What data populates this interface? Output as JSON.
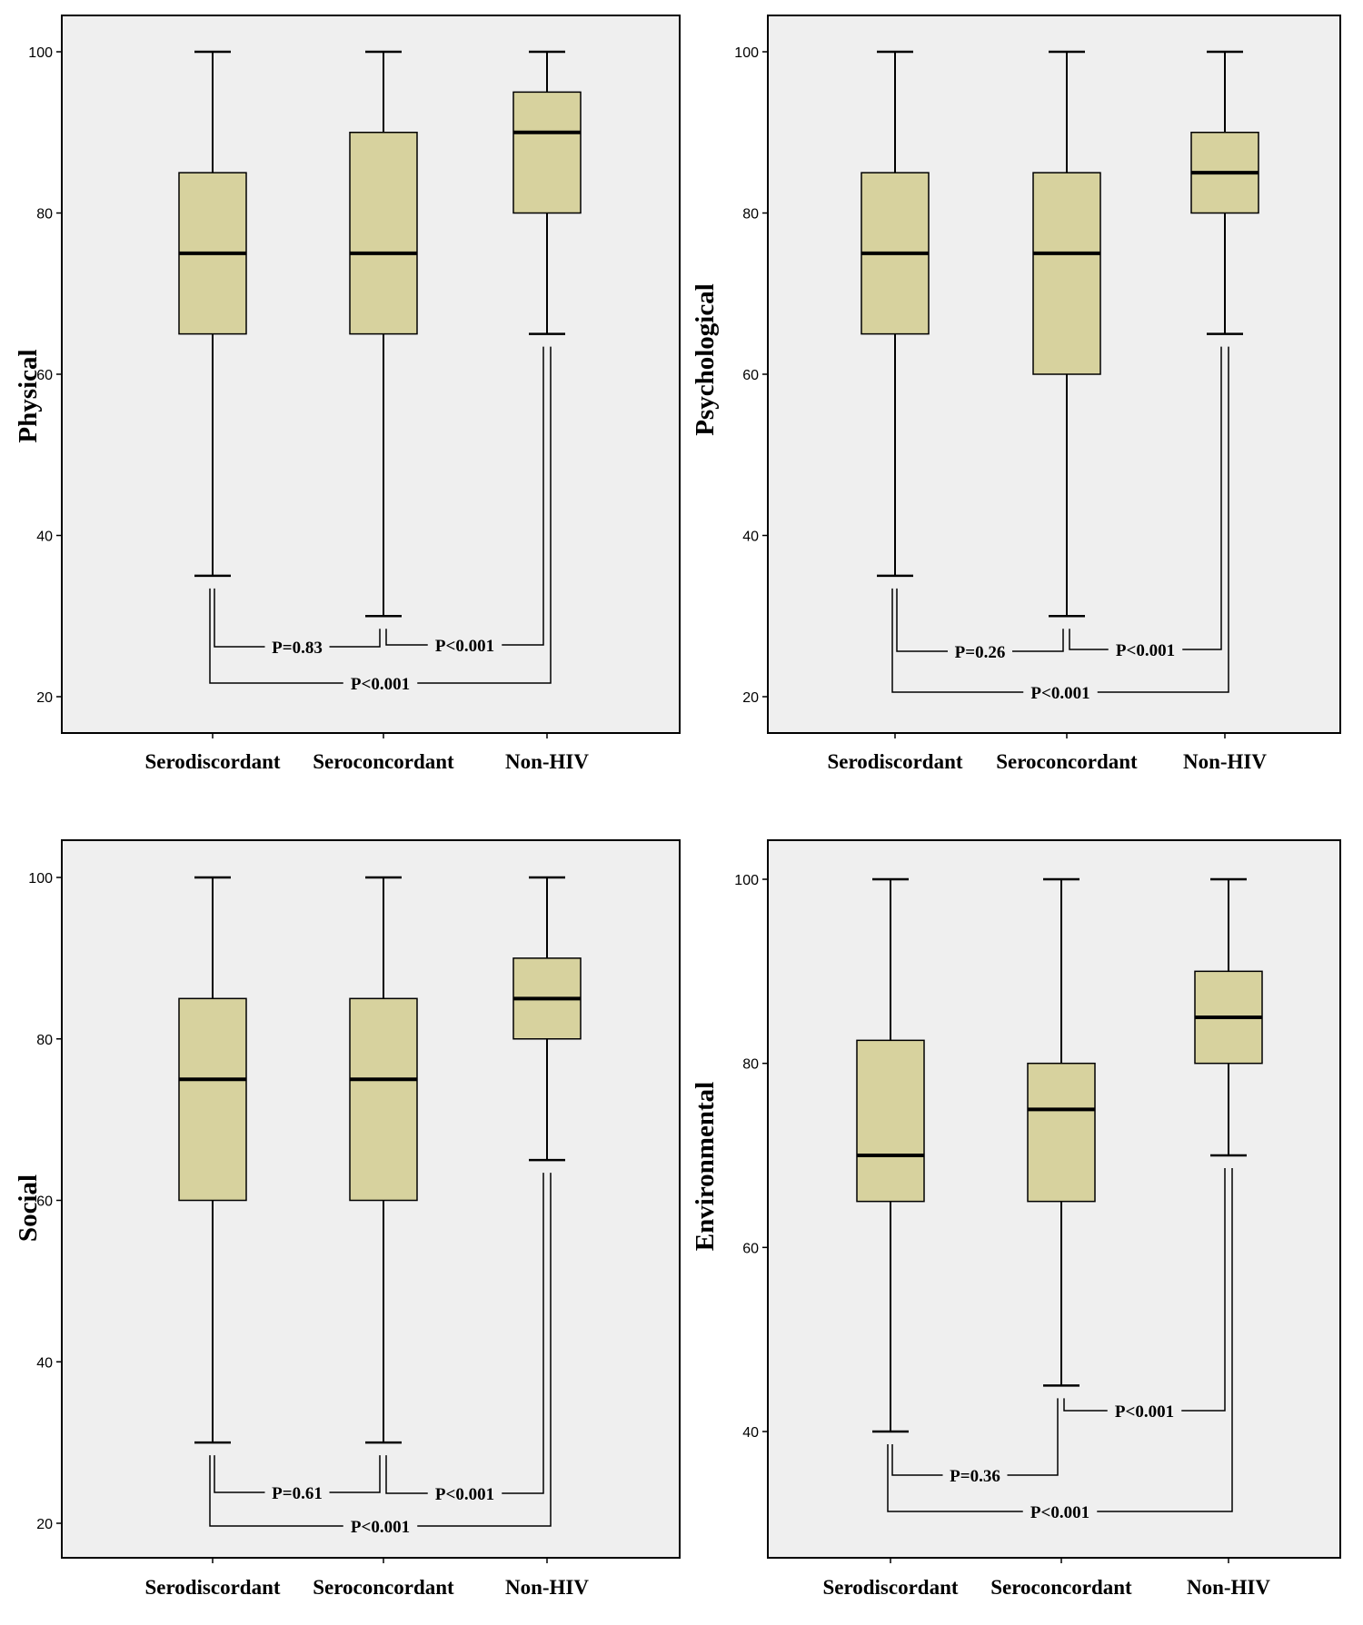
{
  "chart_data": [
    {
      "type": "box",
      "ylabel": "Physical",
      "categories": [
        "Serodiscordant",
        "Seroconcordant",
        "Non-HIV"
      ],
      "ylim": [
        15,
        104
      ],
      "yticks": [
        20,
        40,
        60,
        80,
        100
      ],
      "boxes": [
        {
          "min": 35,
          "q1": 65,
          "median": 75,
          "q3": 85,
          "max": 100
        },
        {
          "min": 30,
          "q1": 65,
          "median": 75,
          "q3": 90,
          "max": 100
        },
        {
          "min": 65,
          "q1": 80,
          "median": 90,
          "q3": 95,
          "max": 100
        }
      ],
      "comparisons": [
        {
          "from": 0,
          "to": 1,
          "label": "P=0.83"
        },
        {
          "from": 1,
          "to": 2,
          "label": "P<0.001"
        },
        {
          "from": 0,
          "to": 2,
          "label": "P<0.001"
        }
      ],
      "box_color": "#d7d29e",
      "background": "#efefef"
    },
    {
      "type": "box",
      "ylabel": "Psychological",
      "categories": [
        "Serodiscordant",
        "Seroconcordant",
        "Non-HIV"
      ],
      "ylim": [
        15,
        104
      ],
      "yticks": [
        20,
        40,
        60,
        80,
        100
      ],
      "boxes": [
        {
          "min": 35,
          "q1": 65,
          "median": 75,
          "q3": 85,
          "max": 100
        },
        {
          "min": 30,
          "q1": 60,
          "median": 75,
          "q3": 85,
          "max": 100
        },
        {
          "min": 65,
          "q1": 80,
          "median": 85,
          "q3": 90,
          "max": 100
        }
      ],
      "comparisons": [
        {
          "from": 0,
          "to": 1,
          "label": "P=0.26"
        },
        {
          "from": 1,
          "to": 2,
          "label": "P<0.001"
        },
        {
          "from": 0,
          "to": 2,
          "label": "P<0.001"
        }
      ],
      "box_color": "#d7d29e",
      "background": "#efefef"
    },
    {
      "type": "box",
      "ylabel": "Social",
      "categories": [
        "Serodiscordant",
        "Seroconcordant",
        "Non-HIV"
      ],
      "ylim": [
        15,
        104
      ],
      "yticks": [
        20,
        40,
        60,
        80,
        100
      ],
      "boxes": [
        {
          "min": 30,
          "q1": 60,
          "median": 75,
          "q3": 85,
          "max": 100
        },
        {
          "min": 30,
          "q1": 60,
          "median": 75,
          "q3": 85,
          "max": 100
        },
        {
          "min": 65,
          "q1": 80,
          "median": 85,
          "q3": 90,
          "max": 100
        }
      ],
      "comparisons": [
        {
          "from": 0,
          "to": 1,
          "label": "P=0.61"
        },
        {
          "from": 1,
          "to": 2,
          "label": "P<0.001"
        },
        {
          "from": 0,
          "to": 2,
          "label": "P<0.001"
        }
      ],
      "box_color": "#d7d29e",
      "background": "#efefef"
    },
    {
      "type": "box",
      "ylabel": "Environmental",
      "categories": [
        "Serodiscordant",
        "Seroconcordant",
        "Non-HIV"
      ],
      "ylim": [
        28,
        104
      ],
      "yticks": [
        40,
        60,
        80,
        100
      ],
      "boxes": [
        {
          "min": 40,
          "q1": 65,
          "median": 70,
          "q3": 82.5,
          "max": 100
        },
        {
          "min": 45,
          "q1": 65,
          "median": 75,
          "q3": 80,
          "max": 100
        },
        {
          "min": 70,
          "q1": 80,
          "median": 85,
          "q3": 90,
          "max": 100
        }
      ],
      "comparisons": [
        {
          "from": 0,
          "to": 1,
          "label": "P=0.36"
        },
        {
          "from": 1,
          "to": 2,
          "label": "P<0.001"
        },
        {
          "from": 0,
          "to": 2,
          "label": "P<0.001"
        }
      ],
      "box_color": "#d7d29e",
      "background": "#efefef"
    }
  ]
}
